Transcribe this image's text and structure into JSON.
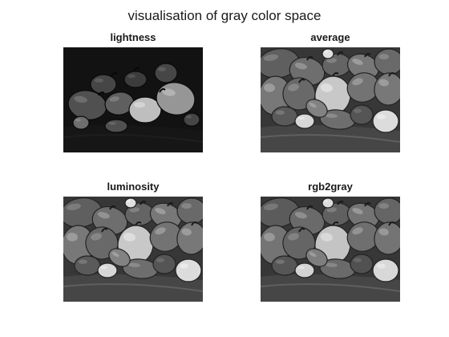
{
  "figure": {
    "title": "visualisation of gray color space",
    "panels": [
      {
        "title": "lightness",
        "tone": "dark",
        "image": "grayscale-peppers-lightness"
      },
      {
        "title": "average",
        "tone": "mid",
        "image": "grayscale-peppers-average"
      },
      {
        "title": "luminosity",
        "tone": "mid",
        "image": "grayscale-peppers-luminosity"
      },
      {
        "title": "rgb2gray",
        "tone": "mid",
        "image": "grayscale-peppers-rgb2gray"
      }
    ]
  }
}
